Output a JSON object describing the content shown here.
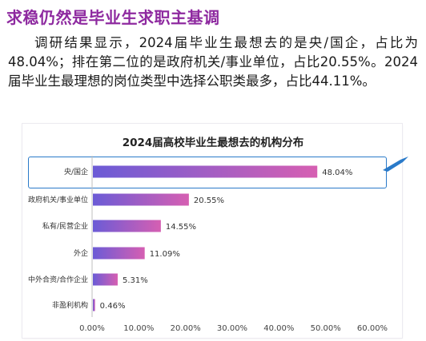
{
  "headline": "求稳仍然是毕业生求职主基调",
  "paragraph": "调研结果显示，2024届毕业生最想去的是央/国企，占比为48.04%；排在第二位的是政府机关/事业单位，占比20.55%。2024届毕业生最理想的岗位类型中选择公职类最多，占比44.11%。",
  "colors": {
    "headline": "#8e2aa0",
    "bar_gradient_start": "#6b5bd6",
    "bar_gradient_end": "#d65fb2",
    "highlight_border": "#2a7ac9"
  },
  "chart_data": {
    "type": "bar",
    "orientation": "horizontal",
    "title": "2024届高校毕业生最想去的机构分布",
    "categories": [
      "央/国企",
      "政府机关/事业单位",
      "私有/民营企业",
      "外企",
      "中外合资/合作企业",
      "非盈利机构"
    ],
    "values": [
      48.04,
      20.55,
      14.55,
      11.09,
      5.31,
      0.46
    ],
    "value_labels": [
      "48.04%",
      "20.55%",
      "14.55%",
      "11.09%",
      "5.31%",
      "0.46%"
    ],
    "xlim": [
      0,
      60
    ],
    "xticks": [
      "0.00%",
      "10.00%",
      "20.00%",
      "30.00%",
      "40.00%",
      "50.00%",
      "60.00%"
    ],
    "highlighted_category": "央/国企",
    "grid": false,
    "legend": "none"
  }
}
